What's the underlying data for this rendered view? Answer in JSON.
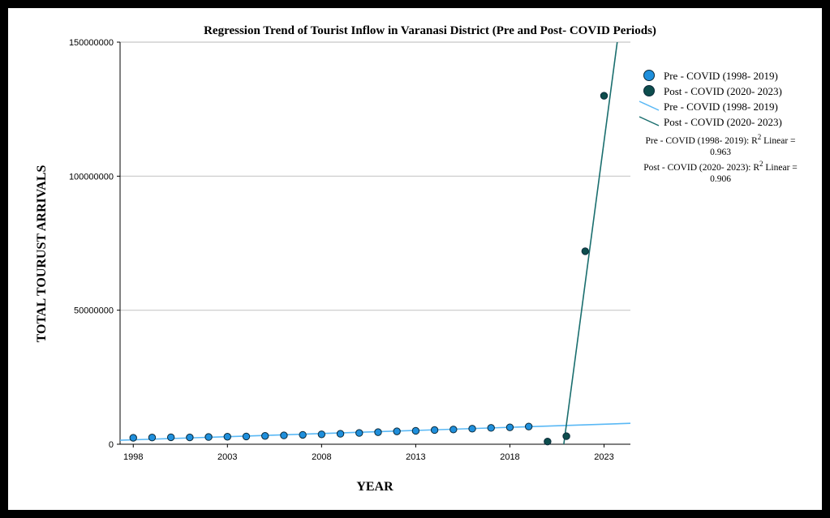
{
  "chart_data": {
    "type": "scatter",
    "title": "Regression Trend of Tourist Inflow in Varanasi District (Pre and Post- COVID Periods)",
    "xlabel": "YEAR",
    "ylabel": "TOTAL TOURUST ARRIVALS",
    "xlim": [
      1997.3,
      2024.4
    ],
    "ylim": [
      0,
      150000000
    ],
    "x_ticks": [
      1998,
      2003,
      2008,
      2013,
      2018,
      2023
    ],
    "y_ticks": [
      0,
      50000000,
      100000000,
      150000000
    ],
    "y_tick_labels": [
      "0",
      "50000000",
      "100000000",
      "150000000"
    ],
    "grid": "horizontal",
    "legend_position": "right",
    "series": [
      {
        "name": "Pre - COVID (1998- 2019)",
        "color": "#1f8fdc",
        "x": [
          1998,
          1999,
          2000,
          2001,
          2002,
          2003,
          2004,
          2005,
          2006,
          2007,
          2008,
          2009,
          2010,
          2011,
          2012,
          2013,
          2014,
          2015,
          2016,
          2017,
          2018,
          2019
        ],
        "y": [
          2400000,
          2500000,
          2600000,
          2550000,
          2700000,
          2800000,
          2900000,
          3100000,
          3300000,
          3500000,
          3700000,
          3900000,
          4200000,
          4500000,
          4800000,
          5000000,
          5300000,
          5500000,
          5800000,
          6100000,
          6300000,
          6600000
        ]
      },
      {
        "name": "Post - COVID (2020- 2023)",
        "color": "#0d4d4d",
        "x": [
          2020,
          2021,
          2022,
          2023
        ],
        "y": [
          1000000,
          3000000,
          72000000,
          130000000
        ]
      }
    ],
    "fit_lines": [
      {
        "name": "Pre - COVID (1998- 2019)",
        "color": "#59b8f5",
        "x": [
          1997.3,
          2024.4
        ],
        "y": [
          1500000,
          7800000
        ]
      },
      {
        "name": "Post - COVID (2020- 2023)",
        "color": "#1a6e6e",
        "x": [
          2020.2,
          2024.4
        ],
        "y": [
          -35000000,
          187000000
        ]
      }
    ],
    "r2_annotations": [
      {
        "label": "Pre - COVID (1998- 2019): R",
        "sup": "2",
        "suffix": " Linear =",
        "value": "0.963"
      },
      {
        "label": "Post - COVID (2020- 2023): R",
        "sup": "2",
        "suffix": " Linear =",
        "value": "0.906"
      }
    ]
  }
}
